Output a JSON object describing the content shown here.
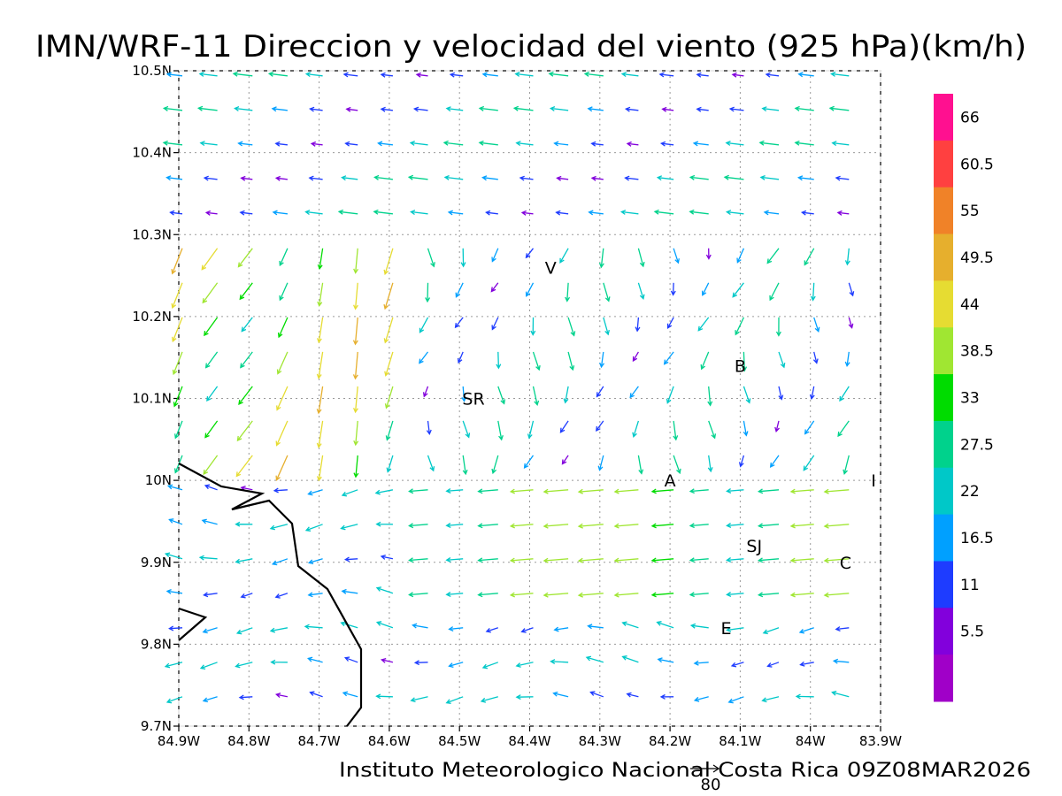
{
  "title": "IMN/WRF-11 Direccion y velocidad del viento (925 hPa)(km/h)",
  "footer": "Instituto Meteorologico Nacional Costa Rica 09Z08MAR2026",
  "reference_vector": {
    "label": "80",
    "value": 80
  },
  "lon_labels": [
    "84.9W",
    "84.8W",
    "84.7W",
    "84.6W",
    "84.5W",
    "84.4W",
    "84.3W",
    "84.2W",
    "84.1W",
    "84W",
    "83.9W"
  ],
  "lat_labels": [
    "10.5N",
    "10.4N",
    "10.3N",
    "10.2N",
    "10.1N",
    "10N",
    "9.9N",
    "9.8N",
    "9.7N"
  ],
  "colorbar": {
    "labels": [
      "66",
      "60.5",
      "55",
      "49.5",
      "44",
      "38.5",
      "33",
      "27.5",
      "22",
      "16.5",
      "11",
      "5.5"
    ],
    "colors": [
      "#ff1090",
      "#ff4040",
      "#f08228",
      "#e6af2d",
      "#e6dc32",
      "#a0e632",
      "#00dc00",
      "#00d28c",
      "#00c8c8",
      "#00a0ff",
      "#1e3cff",
      "#8200dc",
      "#a000c8"
    ]
  },
  "station_labels": [
    {
      "text": "V",
      "lon": -84.37,
      "lat": 10.26
    },
    {
      "text": "SR",
      "lon": -84.48,
      "lat": 10.1
    },
    {
      "text": "B",
      "lon": -84.1,
      "lat": 10.14
    },
    {
      "text": "A",
      "lon": -84.2,
      "lat": 10.0
    },
    {
      "text": "SJ",
      "lon": -84.08,
      "lat": 9.92
    },
    {
      "text": "C",
      "lon": -83.95,
      "lat": 9.9
    },
    {
      "text": "E",
      "lon": -84.12,
      "lat": 9.82
    },
    {
      "text": "I",
      "lon": -83.91,
      "lat": 10.0
    }
  ]
}
